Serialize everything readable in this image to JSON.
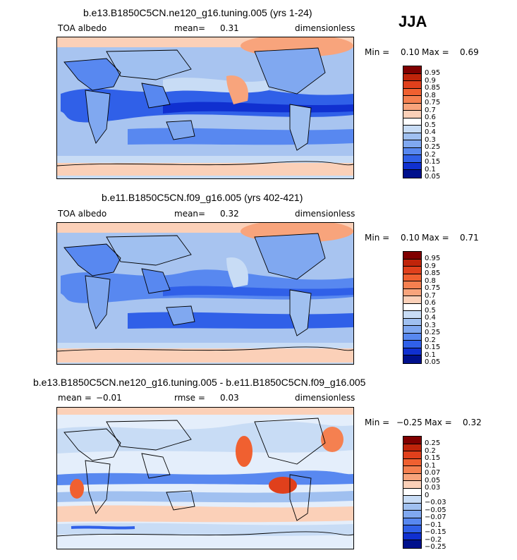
{
  "season": "JJA",
  "panels": [
    {
      "title": "b.e13.B1850C5CN.ne120_g16.tuning.005 (yrs 1-24)",
      "left_label": "TOA albedo",
      "stat_label": "mean=",
      "stat_value": "0.31",
      "units": "dimensionless",
      "min_label": "Min =",
      "min_value": "0.10",
      "max_label": "Max =",
      "max_value": "0.69",
      "colorbar_labels": [
        "0.95",
        "0.9",
        "0.85",
        "0.8",
        "0.75",
        "0.7",
        "0.6",
        "0.5",
        "0.4",
        "0.3",
        "0.25",
        "0.2",
        "0.15",
        "0.1",
        "0.05"
      ]
    },
    {
      "title": "b.e11.B1850C5CN.f09_g16.005 (yrs 402-421)",
      "left_label": "TOA albedo",
      "stat_label": "mean=",
      "stat_value": "0.32",
      "units": "dimensionless",
      "min_label": "Min =",
      "min_value": "0.10",
      "max_label": "Max =",
      "max_value": "0.71",
      "colorbar_labels": [
        "0.95",
        "0.9",
        "0.85",
        "0.8",
        "0.75",
        "0.7",
        "0.6",
        "0.5",
        "0.4",
        "0.3",
        "0.25",
        "0.2",
        "0.15",
        "0.1",
        "0.05"
      ]
    },
    {
      "title": "b.e13.B1850C5CN.ne120_g16.tuning.005 - b.e11.B1850C5CN.f09_g16.005",
      "left_label": "mean =",
      "left_value": "−0.01",
      "stat_label": "rmse =",
      "stat_value": "0.03",
      "units": "dimensionless",
      "min_label": "Min =",
      "min_value": "−0.25",
      "max_label": "Max =",
      "max_value": "0.32",
      "colorbar_labels": [
        "0.25",
        "0.2",
        "0.15",
        "0.1",
        "0.07",
        "0.05",
        "0.03",
        "0",
        "−0.03",
        "−0.05",
        "−0.07",
        "−0.1",
        "−0.15",
        "−0.2",
        "−0.25"
      ]
    }
  ],
  "colors": {
    "scale": [
      "#800000",
      "#c0240a",
      "#e0401c",
      "#f06030",
      "#f58050",
      "#f8a47c",
      "#fbd0b8",
      "#ffffff",
      "#c8dcf5",
      "#a0c0f0",
      "#80a8f0",
      "#5888f0",
      "#3060e8",
      "#1030d0",
      "#00108c"
    ],
    "ocean_base": "#a8c4f0",
    "polar": "#fbd0b8"
  }
}
